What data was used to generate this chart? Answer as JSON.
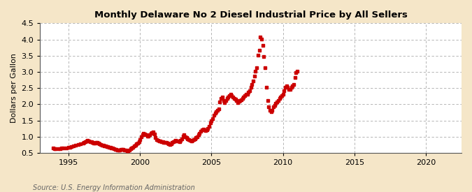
{
  "title": "Monthly Delaware No 2 Diesel Industrial Price by All Sellers",
  "ylabel": "Dollars per Gallon",
  "source": "Source: U.S. Energy Information Administration",
  "bg_color": "#f5e6c8",
  "plot_bg_color": "#ffffff",
  "line_color": "#cc0000",
  "xlim": [
    1993.0,
    2022.5
  ],
  "ylim": [
    0.5,
    4.5
  ],
  "yticks": [
    0.5,
    1.0,
    1.5,
    2.0,
    2.5,
    3.0,
    3.5,
    4.0,
    4.5
  ],
  "xticks": [
    1995,
    2000,
    2005,
    2010,
    2015,
    2020
  ],
  "data": [
    [
      1993.917,
      0.65
    ],
    [
      1994.0,
      0.63
    ],
    [
      1994.083,
      0.63
    ],
    [
      1994.25,
      0.62
    ],
    [
      1994.417,
      0.63
    ],
    [
      1994.5,
      0.64
    ],
    [
      1994.667,
      0.65
    ],
    [
      1994.833,
      0.66
    ],
    [
      1995.0,
      0.67
    ],
    [
      1995.083,
      0.68
    ],
    [
      1995.167,
      0.7
    ],
    [
      1995.333,
      0.72
    ],
    [
      1995.5,
      0.74
    ],
    [
      1995.667,
      0.76
    ],
    [
      1995.833,
      0.78
    ],
    [
      1996.0,
      0.8
    ],
    [
      1996.083,
      0.82
    ],
    [
      1996.167,
      0.84
    ],
    [
      1996.25,
      0.86
    ],
    [
      1996.333,
      0.88
    ],
    [
      1996.417,
      0.87
    ],
    [
      1996.5,
      0.85
    ],
    [
      1996.583,
      0.84
    ],
    [
      1996.667,
      0.82
    ],
    [
      1996.75,
      0.81
    ],
    [
      1996.833,
      0.8
    ],
    [
      1996.917,
      0.82
    ],
    [
      1997.0,
      0.83
    ],
    [
      1997.083,
      0.81
    ],
    [
      1997.167,
      0.78
    ],
    [
      1997.25,
      0.76
    ],
    [
      1997.333,
      0.74
    ],
    [
      1997.417,
      0.73
    ],
    [
      1997.5,
      0.72
    ],
    [
      1997.583,
      0.71
    ],
    [
      1997.667,
      0.7
    ],
    [
      1997.75,
      0.69
    ],
    [
      1997.833,
      0.68
    ],
    [
      1997.917,
      0.67
    ],
    [
      1998.0,
      0.65
    ],
    [
      1998.083,
      0.64
    ],
    [
      1998.167,
      0.62
    ],
    [
      1998.25,
      0.61
    ],
    [
      1998.333,
      0.6
    ],
    [
      1998.417,
      0.59
    ],
    [
      1998.5,
      0.58
    ],
    [
      1998.583,
      0.59
    ],
    [
      1998.667,
      0.6
    ],
    [
      1998.75,
      0.61
    ],
    [
      1998.833,
      0.6
    ],
    [
      1998.917,
      0.59
    ],
    [
      1999.0,
      0.58
    ],
    [
      1999.083,
      0.57
    ],
    [
      1999.167,
      0.57
    ],
    [
      1999.25,
      0.59
    ],
    [
      1999.333,
      0.62
    ],
    [
      1999.417,
      0.65
    ],
    [
      1999.5,
      0.68
    ],
    [
      1999.583,
      0.71
    ],
    [
      1999.667,
      0.74
    ],
    [
      1999.75,
      0.77
    ],
    [
      1999.833,
      0.8
    ],
    [
      1999.917,
      0.84
    ],
    [
      2000.0,
      0.91
    ],
    [
      2000.083,
      0.99
    ],
    [
      2000.167,
      1.06
    ],
    [
      2000.25,
      1.11
    ],
    [
      2000.333,
      1.08
    ],
    [
      2000.417,
      1.05
    ],
    [
      2000.5,
      1.02
    ],
    [
      2000.583,
      1.01
    ],
    [
      2000.667,
      1.06
    ],
    [
      2000.75,
      1.11
    ],
    [
      2000.833,
      1.13
    ],
    [
      2000.917,
      1.14
    ],
    [
      2001.0,
      1.08
    ],
    [
      2001.083,
      0.98
    ],
    [
      2001.167,
      0.9
    ],
    [
      2001.25,
      0.88
    ],
    [
      2001.333,
      0.87
    ],
    [
      2001.417,
      0.86
    ],
    [
      2001.5,
      0.85
    ],
    [
      2001.583,
      0.84
    ],
    [
      2001.667,
      0.83
    ],
    [
      2001.75,
      0.83
    ],
    [
      2001.833,
      0.82
    ],
    [
      2001.917,
      0.8
    ],
    [
      2002.0,
      0.78
    ],
    [
      2002.083,
      0.76
    ],
    [
      2002.167,
      0.78
    ],
    [
      2002.25,
      0.82
    ],
    [
      2002.333,
      0.85
    ],
    [
      2002.417,
      0.87
    ],
    [
      2002.5,
      0.88
    ],
    [
      2002.583,
      0.87
    ],
    [
      2002.667,
      0.86
    ],
    [
      2002.75,
      0.85
    ],
    [
      2002.833,
      0.88
    ],
    [
      2002.917,
      0.93
    ],
    [
      2003.0,
      1.02
    ],
    [
      2003.083,
      1.06
    ],
    [
      2003.167,
      1.0
    ],
    [
      2003.25,
      0.97
    ],
    [
      2003.333,
      0.93
    ],
    [
      2003.417,
      0.9
    ],
    [
      2003.5,
      0.88
    ],
    [
      2003.583,
      0.87
    ],
    [
      2003.667,
      0.88
    ],
    [
      2003.75,
      0.9
    ],
    [
      2003.833,
      0.93
    ],
    [
      2003.917,
      0.97
    ],
    [
      2004.0,
      1.0
    ],
    [
      2004.083,
      1.06
    ],
    [
      2004.167,
      1.11
    ],
    [
      2004.25,
      1.16
    ],
    [
      2004.333,
      1.21
    ],
    [
      2004.417,
      1.23
    ],
    [
      2004.5,
      1.2
    ],
    [
      2004.583,
      1.18
    ],
    [
      2004.667,
      1.21
    ],
    [
      2004.75,
      1.26
    ],
    [
      2004.833,
      1.32
    ],
    [
      2004.917,
      1.42
    ],
    [
      2005.0,
      1.49
    ],
    [
      2005.083,
      1.56
    ],
    [
      2005.167,
      1.67
    ],
    [
      2005.25,
      1.72
    ],
    [
      2005.333,
      1.77
    ],
    [
      2005.417,
      1.81
    ],
    [
      2005.5,
      1.86
    ],
    [
      2005.583,
      2.08
    ],
    [
      2005.667,
      2.17
    ],
    [
      2005.75,
      2.22
    ],
    [
      2005.833,
      2.12
    ],
    [
      2005.917,
      2.06
    ],
    [
      2006.0,
      2.12
    ],
    [
      2006.083,
      2.17
    ],
    [
      2006.167,
      2.22
    ],
    [
      2006.25,
      2.27
    ],
    [
      2006.333,
      2.32
    ],
    [
      2006.417,
      2.27
    ],
    [
      2006.5,
      2.22
    ],
    [
      2006.583,
      2.19
    ],
    [
      2006.667,
      2.16
    ],
    [
      2006.75,
      2.11
    ],
    [
      2006.833,
      2.06
    ],
    [
      2006.917,
      2.1
    ],
    [
      2007.0,
      2.12
    ],
    [
      2007.083,
      2.14
    ],
    [
      2007.167,
      2.17
    ],
    [
      2007.25,
      2.22
    ],
    [
      2007.333,
      2.27
    ],
    [
      2007.417,
      2.3
    ],
    [
      2007.5,
      2.32
    ],
    [
      2007.583,
      2.37
    ],
    [
      2007.667,
      2.42
    ],
    [
      2007.75,
      2.52
    ],
    [
      2007.833,
      2.62
    ],
    [
      2007.917,
      2.72
    ],
    [
      2008.0,
      2.87
    ],
    [
      2008.083,
      3.02
    ],
    [
      2008.167,
      3.12
    ],
    [
      2008.25,
      3.52
    ],
    [
      2008.333,
      3.67
    ],
    [
      2008.417,
      4.07
    ],
    [
      2008.5,
      4.02
    ],
    [
      2008.583,
      3.82
    ],
    [
      2008.667,
      3.47
    ],
    [
      2008.75,
      3.12
    ],
    [
      2008.833,
      2.52
    ],
    [
      2008.917,
      2.12
    ],
    [
      2009.0,
      1.92
    ],
    [
      2009.083,
      1.82
    ],
    [
      2009.167,
      1.77
    ],
    [
      2009.25,
      1.82
    ],
    [
      2009.333,
      1.92
    ],
    [
      2009.417,
      1.97
    ],
    [
      2009.5,
      2.02
    ],
    [
      2009.583,
      2.07
    ],
    [
      2009.667,
      2.12
    ],
    [
      2009.75,
      2.17
    ],
    [
      2009.833,
      2.22
    ],
    [
      2009.917,
      2.27
    ],
    [
      2010.0,
      2.32
    ],
    [
      2010.083,
      2.42
    ],
    [
      2010.167,
      2.52
    ],
    [
      2010.25,
      2.57
    ],
    [
      2010.333,
      2.52
    ],
    [
      2010.417,
      2.47
    ],
    [
      2010.5,
      2.47
    ],
    [
      2010.583,
      2.52
    ],
    [
      2010.667,
      2.57
    ],
    [
      2010.75,
      2.62
    ],
    [
      2010.833,
      2.82
    ],
    [
      2010.917,
      2.97
    ],
    [
      2011.0,
      3.02
    ]
  ]
}
